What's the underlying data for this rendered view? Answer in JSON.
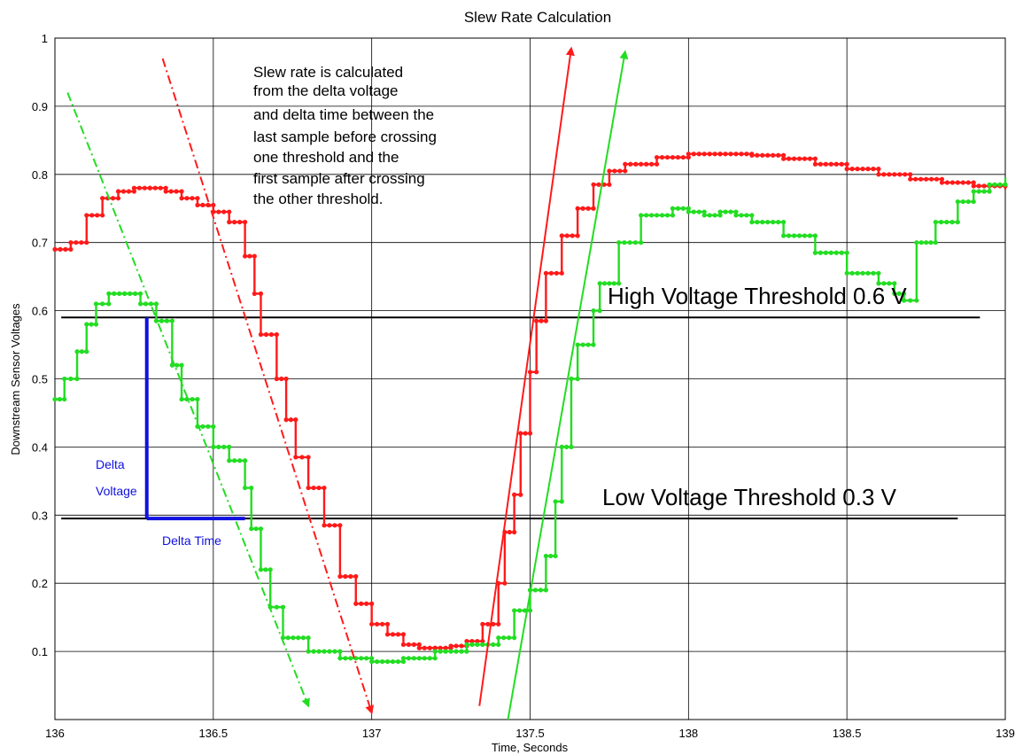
{
  "chart_data": {
    "type": "line",
    "title": "Slew Rate Calculation",
    "xlabel": "Time, Seconds",
    "ylabel": "Downstream Sensor Voltages",
    "xlim": [
      136,
      139
    ],
    "ylim": [
      0,
      1
    ],
    "grid": true,
    "x_ticks": [
      "136",
      "136.5",
      "137",
      "137.5",
      "138",
      "138.5",
      "139"
    ],
    "y_ticks": [
      "0.1",
      "0.2",
      "0.3",
      "0.4",
      "0.5",
      "0.6",
      "0.7",
      "0.8",
      "0.9",
      "1"
    ],
    "series": [
      {
        "color": "#ff1a1a",
        "points": [
          [
            136.0,
            0.69
          ],
          [
            136.05,
            0.7
          ],
          [
            136.1,
            0.74
          ],
          [
            136.15,
            0.765
          ],
          [
            136.2,
            0.775
          ],
          [
            136.25,
            0.78
          ],
          [
            136.3,
            0.78
          ],
          [
            136.35,
            0.775
          ],
          [
            136.4,
            0.765
          ],
          [
            136.45,
            0.755
          ],
          [
            136.5,
            0.745
          ],
          [
            136.55,
            0.73
          ],
          [
            136.6,
            0.68
          ],
          [
            136.63,
            0.625
          ],
          [
            136.65,
            0.565
          ],
          [
            136.7,
            0.5
          ],
          [
            136.73,
            0.44
          ],
          [
            136.76,
            0.385
          ],
          [
            136.8,
            0.34
          ],
          [
            136.85,
            0.285
          ],
          [
            136.9,
            0.21
          ],
          [
            136.95,
            0.17
          ],
          [
            137.0,
            0.14
          ],
          [
            137.05,
            0.125
          ],
          [
            137.1,
            0.11
          ],
          [
            137.15,
            0.105
          ],
          [
            137.2,
            0.105
          ],
          [
            137.25,
            0.108
          ],
          [
            137.3,
            0.115
          ],
          [
            137.35,
            0.14
          ],
          [
            137.4,
            0.2
          ],
          [
            137.42,
            0.275
          ],
          [
            137.45,
            0.33
          ],
          [
            137.47,
            0.42
          ],
          [
            137.5,
            0.51
          ],
          [
            137.52,
            0.585
          ],
          [
            137.55,
            0.655
          ],
          [
            137.6,
            0.71
          ],
          [
            137.65,
            0.75
          ],
          [
            137.7,
            0.785
          ],
          [
            137.75,
            0.805
          ],
          [
            137.8,
            0.815
          ],
          [
            137.9,
            0.825
          ],
          [
            138.0,
            0.83
          ],
          [
            138.1,
            0.83
          ],
          [
            138.2,
            0.828
          ],
          [
            138.3,
            0.823
          ],
          [
            138.4,
            0.815
          ],
          [
            138.5,
            0.808
          ],
          [
            138.6,
            0.8
          ],
          [
            138.7,
            0.793
          ],
          [
            138.8,
            0.788
          ],
          [
            138.9,
            0.783
          ],
          [
            139.0,
            0.778
          ]
        ]
      },
      {
        "color": "#22dd22",
        "points": [
          [
            136.0,
            0.47
          ],
          [
            136.03,
            0.5
          ],
          [
            136.07,
            0.54
          ],
          [
            136.1,
            0.58
          ],
          [
            136.13,
            0.61
          ],
          [
            136.17,
            0.625
          ],
          [
            136.22,
            0.625
          ],
          [
            136.27,
            0.61
          ],
          [
            136.32,
            0.585
          ],
          [
            136.37,
            0.52
          ],
          [
            136.4,
            0.47
          ],
          [
            136.45,
            0.43
          ],
          [
            136.5,
            0.4
          ],
          [
            136.55,
            0.38
          ],
          [
            136.6,
            0.34
          ],
          [
            136.62,
            0.28
          ],
          [
            136.65,
            0.22
          ],
          [
            136.68,
            0.165
          ],
          [
            136.72,
            0.12
          ],
          [
            136.8,
            0.1
          ],
          [
            136.9,
            0.09
          ],
          [
            137.0,
            0.085
          ],
          [
            137.1,
            0.09
          ],
          [
            137.2,
            0.1
          ],
          [
            137.3,
            0.11
          ],
          [
            137.4,
            0.12
          ],
          [
            137.45,
            0.16
          ],
          [
            137.5,
            0.19
          ],
          [
            137.55,
            0.24
          ],
          [
            137.58,
            0.32
          ],
          [
            137.6,
            0.4
          ],
          [
            137.63,
            0.5
          ],
          [
            137.65,
            0.55
          ],
          [
            137.7,
            0.6
          ],
          [
            137.72,
            0.64
          ],
          [
            137.78,
            0.7
          ],
          [
            137.85,
            0.74
          ],
          [
            137.95,
            0.75
          ],
          [
            138.0,
            0.745
          ],
          [
            138.05,
            0.74
          ],
          [
            138.1,
            0.745
          ],
          [
            138.15,
            0.74
          ],
          [
            138.2,
            0.73
          ],
          [
            138.3,
            0.71
          ],
          [
            138.4,
            0.685
          ],
          [
            138.5,
            0.655
          ],
          [
            138.6,
            0.64
          ],
          [
            138.65,
            0.625
          ],
          [
            138.68,
            0.615
          ],
          [
            138.72,
            0.7
          ],
          [
            138.78,
            0.73
          ],
          [
            138.85,
            0.76
          ],
          [
            138.9,
            0.775
          ],
          [
            138.95,
            0.785
          ],
          [
            139.0,
            0.795
          ]
        ]
      }
    ],
    "thresholds": [
      {
        "label": "High Voltage Threshold  0.6 V",
        "y": 0.59,
        "x_end": 138.92
      },
      {
        "label": "Low Voltage Threshold 0.3 V",
        "y": 0.295,
        "x_end": 138.85
      }
    ],
    "arrows": [
      {
        "color": "#ff1a1a",
        "style": "dashdot",
        "from": [
          136.34,
          0.97
        ],
        "to": [
          137.0,
          0.01
        ]
      },
      {
        "color": "#22dd22",
        "style": "dashdot",
        "from": [
          136.04,
          0.92
        ],
        "to": [
          136.8,
          0.02
        ]
      },
      {
        "color": "#ff1a1a",
        "style": "solid",
        "from": [
          137.34,
          0.02
        ],
        "to": [
          137.63,
          0.985
        ]
      },
      {
        "color": "#22dd22",
        "style": "solid",
        "from": [
          137.43,
          0.0
        ],
        "to": [
          137.8,
          0.98
        ]
      }
    ],
    "delta": {
      "x0": 136.29,
      "x1": 136.6,
      "y_top": 0.59,
      "y_bottom": 0.295
    }
  },
  "annotations": {
    "description": [
      "Slew rate is calculated",
      "from the delta voltage",
      "and delta time between the",
      "last sample before crossing",
      "one threshold and the",
      "first sample after crossing",
      "the other threshold."
    ],
    "delta_voltage_line1": "Delta",
    "delta_voltage_line2": "Voltage",
    "delta_time": "Delta Time"
  }
}
